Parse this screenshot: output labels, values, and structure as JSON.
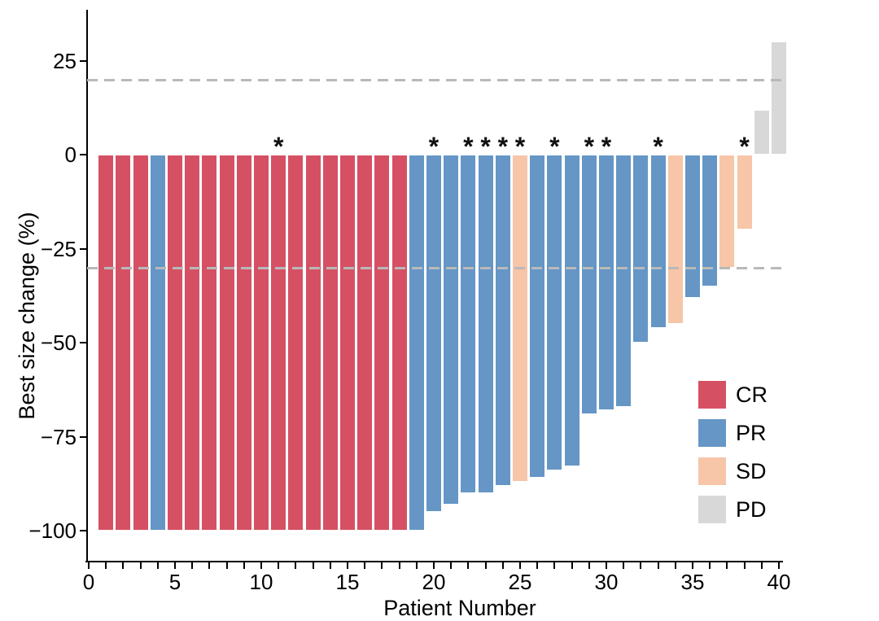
{
  "chart_data": {
    "type": "bar",
    "subtype": "waterfall",
    "title": "",
    "xlabel": "Patient Number",
    "ylabel": "Best size change (%)",
    "xlim": [
      0,
      41
    ],
    "ylim": [
      -108,
      38
    ],
    "grid": false,
    "x_major_ticks": [
      0,
      5,
      10,
      15,
      20,
      25,
      30,
      35,
      40
    ],
    "x_minor_tick_every": 1,
    "x_tick_count": 41,
    "y_ticks": [
      25,
      0,
      -25,
      -50,
      -75,
      -100
    ],
    "y_tick_labels": [
      "25",
      "0",
      "−25",
      "−50",
      "−75",
      "−100"
    ],
    "reference_lines": [
      {
        "y": 20,
        "style": "dashed",
        "color": "#b9b9b9"
      },
      {
        "y": -30,
        "style": "dashed",
        "color": "#b9b9b9"
      }
    ],
    "annotation_symbol": "*",
    "legend": {
      "position": "inside-right",
      "entries": [
        {
          "label": "CR",
          "color": "#d65064"
        },
        {
          "label": "PR",
          "color": "#6596c5"
        },
        {
          "label": "SD",
          "color": "#f7c5a8"
        },
        {
          "label": "PD",
          "color": "#d8d8d8"
        }
      ]
    },
    "patients": [
      {
        "patient": 1,
        "value": -100,
        "response": "CR",
        "starred": false
      },
      {
        "patient": 2,
        "value": -100,
        "response": "CR",
        "starred": false
      },
      {
        "patient": 3,
        "value": -100,
        "response": "CR",
        "starred": false
      },
      {
        "patient": 4,
        "value": -100,
        "response": "PR",
        "starred": false
      },
      {
        "patient": 5,
        "value": -100,
        "response": "CR",
        "starred": false
      },
      {
        "patient": 6,
        "value": -100,
        "response": "CR",
        "starred": false
      },
      {
        "patient": 7,
        "value": -100,
        "response": "CR",
        "starred": false
      },
      {
        "patient": 8,
        "value": -100,
        "response": "CR",
        "starred": false
      },
      {
        "patient": 9,
        "value": -100,
        "response": "CR",
        "starred": false
      },
      {
        "patient": 10,
        "value": -100,
        "response": "CR",
        "starred": false
      },
      {
        "patient": 11,
        "value": -100,
        "response": "CR",
        "starred": true
      },
      {
        "patient": 12,
        "value": -100,
        "response": "CR",
        "starred": false
      },
      {
        "patient": 13,
        "value": -100,
        "response": "CR",
        "starred": false
      },
      {
        "pat": 0,
        "patient": 14,
        "value": -100,
        "response": "CR",
        "starred": false
      },
      {
        "patient": 15,
        "value": -100,
        "response": "CR",
        "starred": false
      },
      {
        "patient": 16,
        "value": -100,
        "response": "CR",
        "starred": false
      },
      {
        "patient": 17,
        "value": -100,
        "response": "CR",
        "starred": false
      },
      {
        "patient": 18,
        "value": -100,
        "response": "CR",
        "starred": false
      },
      {
        "patient": 19,
        "value": -100,
        "response": "PR",
        "starred": false
      },
      {
        "patient": 20,
        "value": -95,
        "response": "PR",
        "starred": true
      },
      {
        "patient": 21,
        "value": -93,
        "response": "PR",
        "starred": false
      },
      {
        "patient": 22,
        "value": -90,
        "response": "PR",
        "starred": true
      },
      {
        "patient": 23,
        "value": -90,
        "response": "PR",
        "starred": true
      },
      {
        "patient": 24,
        "value": -88,
        "response": "PR",
        "starred": true
      },
      {
        "patient": 25,
        "value": -87,
        "response": "SD",
        "starred": true
      },
      {
        "patient": 26,
        "value": -86,
        "response": "PR",
        "starred": false
      },
      {
        "patient": 27,
        "value": -84,
        "response": "PR",
        "starred": true
      },
      {
        "patient": 28,
        "value": -83,
        "response": "PR",
        "starred": false
      },
      {
        "patient": 29,
        "value": -69,
        "response": "PR",
        "starred": true
      },
      {
        "patient": 30,
        "value": -68,
        "response": "PR",
        "starred": true
      },
      {
        "patient": 31,
        "value": -67,
        "response": "PR",
        "starred": false
      },
      {
        "patient": 32,
        "value": -50,
        "response": "PR",
        "starred": false
      },
      {
        "patient": 33,
        "value": -46,
        "response": "PR",
        "starred": true
      },
      {
        "patient": 34,
        "value": -45,
        "response": "SD",
        "starred": false
      },
      {
        "patient": 35,
        "value": -38,
        "response": "PR",
        "starred": false
      },
      {
        "patient": 36,
        "value": -35,
        "response": "PR",
        "starred": false
      },
      {
        "patient": 37,
        "value": -30,
        "response": "SD",
        "starred": false
      },
      {
        "patient": 38,
        "value": -20,
        "response": "SD",
        "starred": true
      },
      {
        "patient": 39,
        "value": 12,
        "response": "PD",
        "starred": false
      },
      {
        "patient": 40,
        "value": 30,
        "response": "PD",
        "starred": false
      }
    ]
  },
  "colors": {
    "CR": "#d65064",
    "PR": "#6596c5",
    "SD": "#f7c5a8",
    "PD": "#d8d8d8",
    "reference_line": "#b9b9b9",
    "axis": "#000000"
  }
}
